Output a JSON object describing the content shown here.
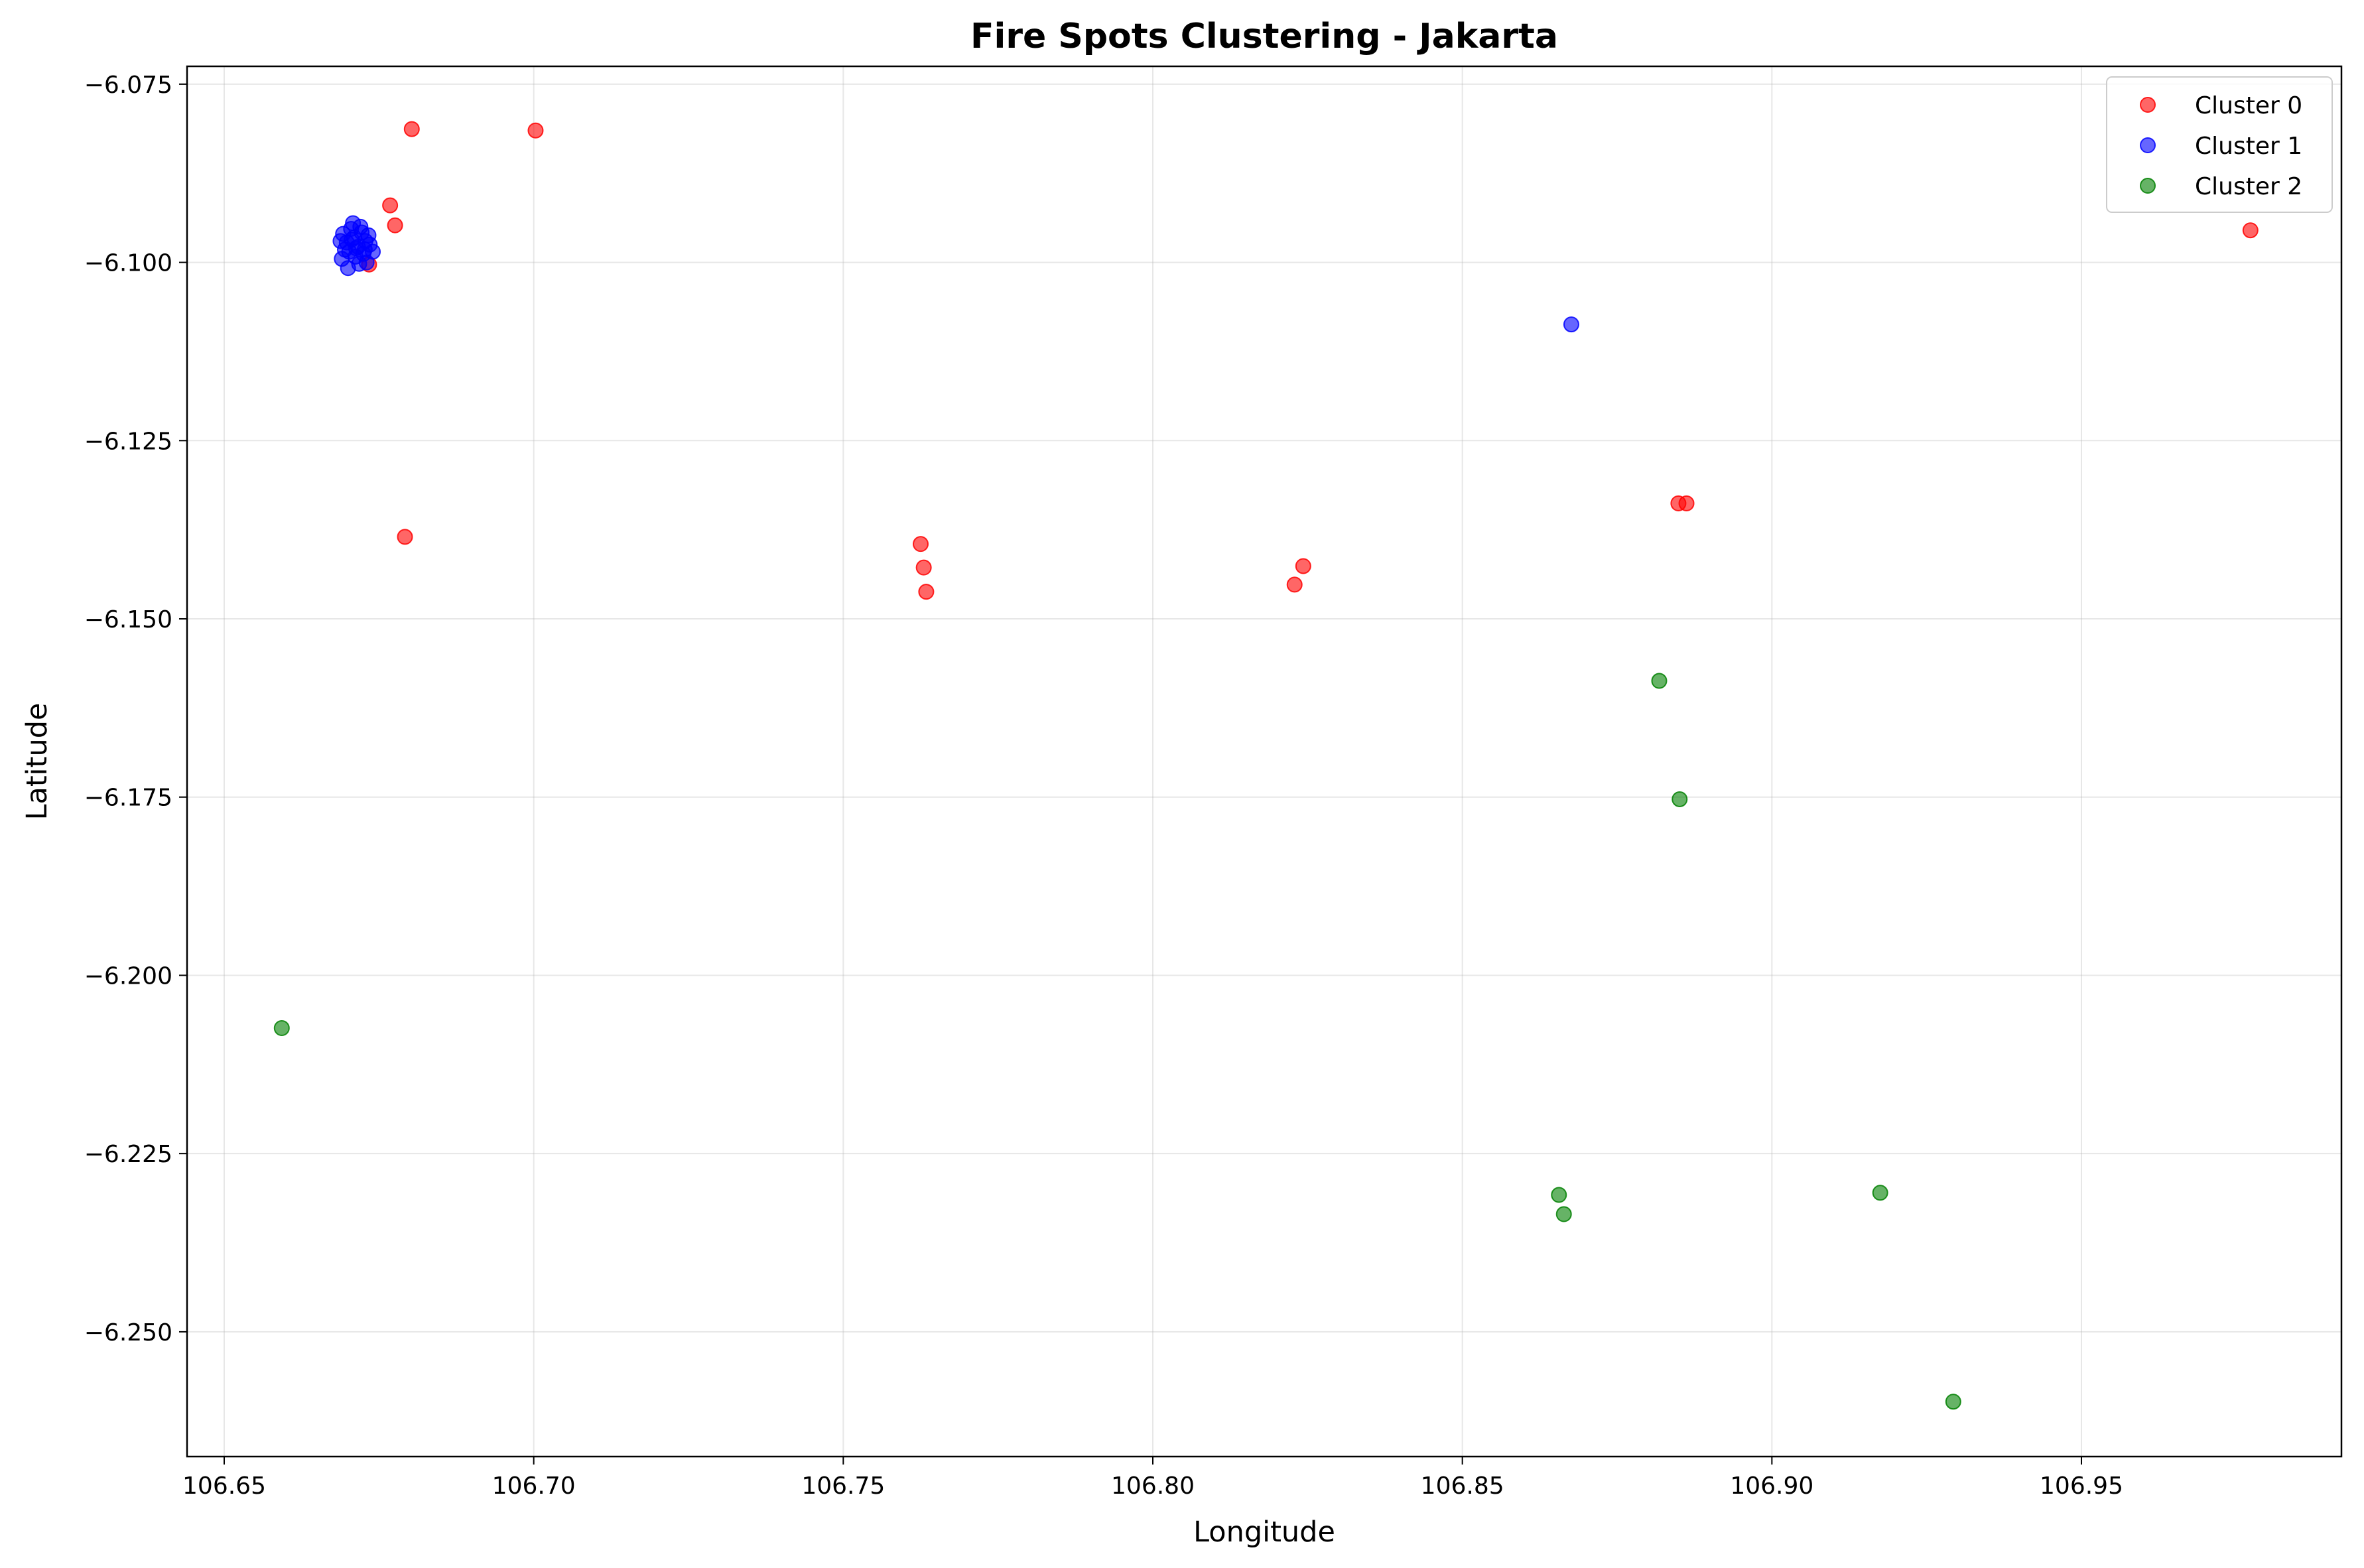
{
  "chart_data": {
    "type": "scatter",
    "title": "Fire Spots Clustering - Jakarta",
    "xlabel": "Longitude",
    "ylabel": "Latitude",
    "xlim": [
      106.644,
      106.992
    ],
    "ylim": [
      -6.2675,
      -6.0725
    ],
    "xticks": [
      106.65,
      106.7,
      106.75,
      106.8,
      106.85,
      106.9,
      106.95
    ],
    "xtick_labels": [
      "106.65",
      "106.70",
      "106.75",
      "106.80",
      "106.85",
      "106.90",
      "106.95"
    ],
    "yticks": [
      -6.075,
      -6.1,
      -6.125,
      -6.15,
      -6.175,
      -6.2,
      -6.225,
      -6.25
    ],
    "ytick_labels": [
      "−6.075",
      "−6.100",
      "−6.125",
      "−6.150",
      "−6.175",
      "−6.200",
      "−6.225",
      "−6.250"
    ],
    "grid": true,
    "legend_position": "top-right",
    "series": [
      {
        "name": "Cluster 0",
        "color": "#ff0000",
        "points": [
          [
            106.6803,
            -6.0813
          ],
          [
            106.7003,
            -6.0815
          ],
          [
            106.6768,
            -6.092
          ],
          [
            106.6776,
            -6.0948
          ],
          [
            106.6734,
            -6.1003
          ],
          [
            106.6792,
            -6.1385
          ],
          [
            106.7625,
            -6.1395
          ],
          [
            106.763,
            -6.1428
          ],
          [
            106.7634,
            -6.1462
          ],
          [
            106.8243,
            -6.1426
          ],
          [
            106.8229,
            -6.1452
          ],
          [
            106.8849,
            -6.1338
          ],
          [
            106.8862,
            -6.1338
          ],
          [
            106.9773,
            -6.0955
          ]
        ]
      },
      {
        "name": "Cluster 1",
        "color": "#0000ff",
        "points": [
          [
            106.6692,
            -6.096
          ],
          [
            106.6698,
            -6.0972
          ],
          [
            106.6705,
            -6.0953
          ],
          [
            106.671,
            -6.0965
          ],
          [
            106.6716,
            -6.0978
          ],
          [
            106.6722,
            -6.0958
          ],
          [
            106.6728,
            -6.097
          ],
          [
            106.6702,
            -6.0985
          ],
          [
            106.669,
            -6.0995
          ],
          [
            106.6712,
            -6.0992
          ],
          [
            106.6725,
            -6.0988
          ],
          [
            106.6735,
            -6.0975
          ],
          [
            106.6718,
            -6.1002
          ],
          [
            106.67,
            -6.1008
          ],
          [
            106.673,
            -6.1
          ],
          [
            106.674,
            -6.0985
          ],
          [
            106.6708,
            -6.0945
          ],
          [
            106.672,
            -6.095
          ],
          [
            106.6733,
            -6.0962
          ],
          [
            106.6688,
            -6.097
          ],
          [
            106.6695,
            -6.0982
          ],
          [
            106.6713,
            -6.098
          ],
          [
            106.6727,
            -6.0982
          ],
          [
            106.6706,
            -6.0968
          ],
          [
            106.8676,
            -6.1087
          ]
        ]
      },
      {
        "name": "Cluster 2",
        "color": "#008000",
        "points": [
          [
            106.8818,
            -6.1587
          ],
          [
            106.8851,
            -6.1753
          ],
          [
            106.6593,
            -6.2074
          ],
          [
            106.8656,
            -6.2308
          ],
          [
            106.8664,
            -6.2335
          ],
          [
            106.9175,
            -6.2305
          ],
          [
            106.9293,
            -6.2598
          ]
        ]
      }
    ]
  }
}
